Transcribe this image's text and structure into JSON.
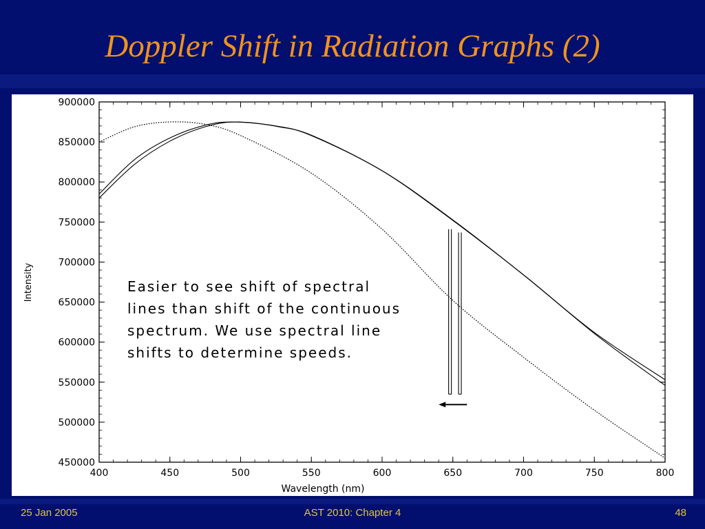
{
  "slide": {
    "title": "Doppler Shift in Radiation Graphs (2)",
    "annotation": "Easier to see shift of spectral lines than shift of the continuous spectrum. We use spectral line shifts to determine speeds.",
    "footer": {
      "date": "25 Jan 2005",
      "course": "AST 2010: Chapter 4",
      "page": "48"
    },
    "colors": {
      "background": "#020f6e",
      "title": "#f2921e",
      "footer": "#e2c63a"
    }
  },
  "chart_data": {
    "type": "line",
    "xlabel": "Wavelength (nm)",
    "ylabel": "Intensity",
    "xlim": [
      400,
      800
    ],
    "ylim": [
      450000,
      900000
    ],
    "xticks": [
      400,
      450,
      500,
      550,
      600,
      650,
      700,
      750,
      800
    ],
    "yticks": [
      900000,
      850000,
      800000,
      750000,
      700000,
      650000,
      600000,
      550000,
      500000,
      450000
    ],
    "grid": false,
    "series": [
      {
        "style": "dotted",
        "x": [
          400,
          425,
          450,
          475,
          500,
          550,
          600,
          650,
          700,
          750,
          800
        ],
        "y": [
          850000,
          869000,
          875000,
          872000,
          858000,
          811000,
          741000,
          652000,
          581000,
          515000,
          455000
        ]
      },
      {
        "style": "solid",
        "x": [
          400,
          425,
          450,
          475,
          495,
          525,
          550,
          600,
          650,
          700,
          750,
          800
        ],
        "y": [
          785000,
          828000,
          855000,
          871000,
          875000,
          870000,
          858000,
          814000,
          752000,
          684000,
          612000,
          553000
        ]
      },
      {
        "style": "solid",
        "x": [
          400,
          425,
          450,
          475,
          497,
          527,
          552,
          602,
          652,
          702,
          752,
          800
        ],
        "y": [
          780000,
          822000,
          851000,
          869000,
          875000,
          869000,
          857000,
          812000,
          750000,
          681000,
          608000,
          546000
        ]
      }
    ],
    "absorption_lines": [
      {
        "x": 648,
        "depth_to": 535000
      },
      {
        "x": 655,
        "depth_to": 535000
      }
    ],
    "shift_arrow": {
      "from": 660,
      "to": 640,
      "y": 522000
    }
  }
}
